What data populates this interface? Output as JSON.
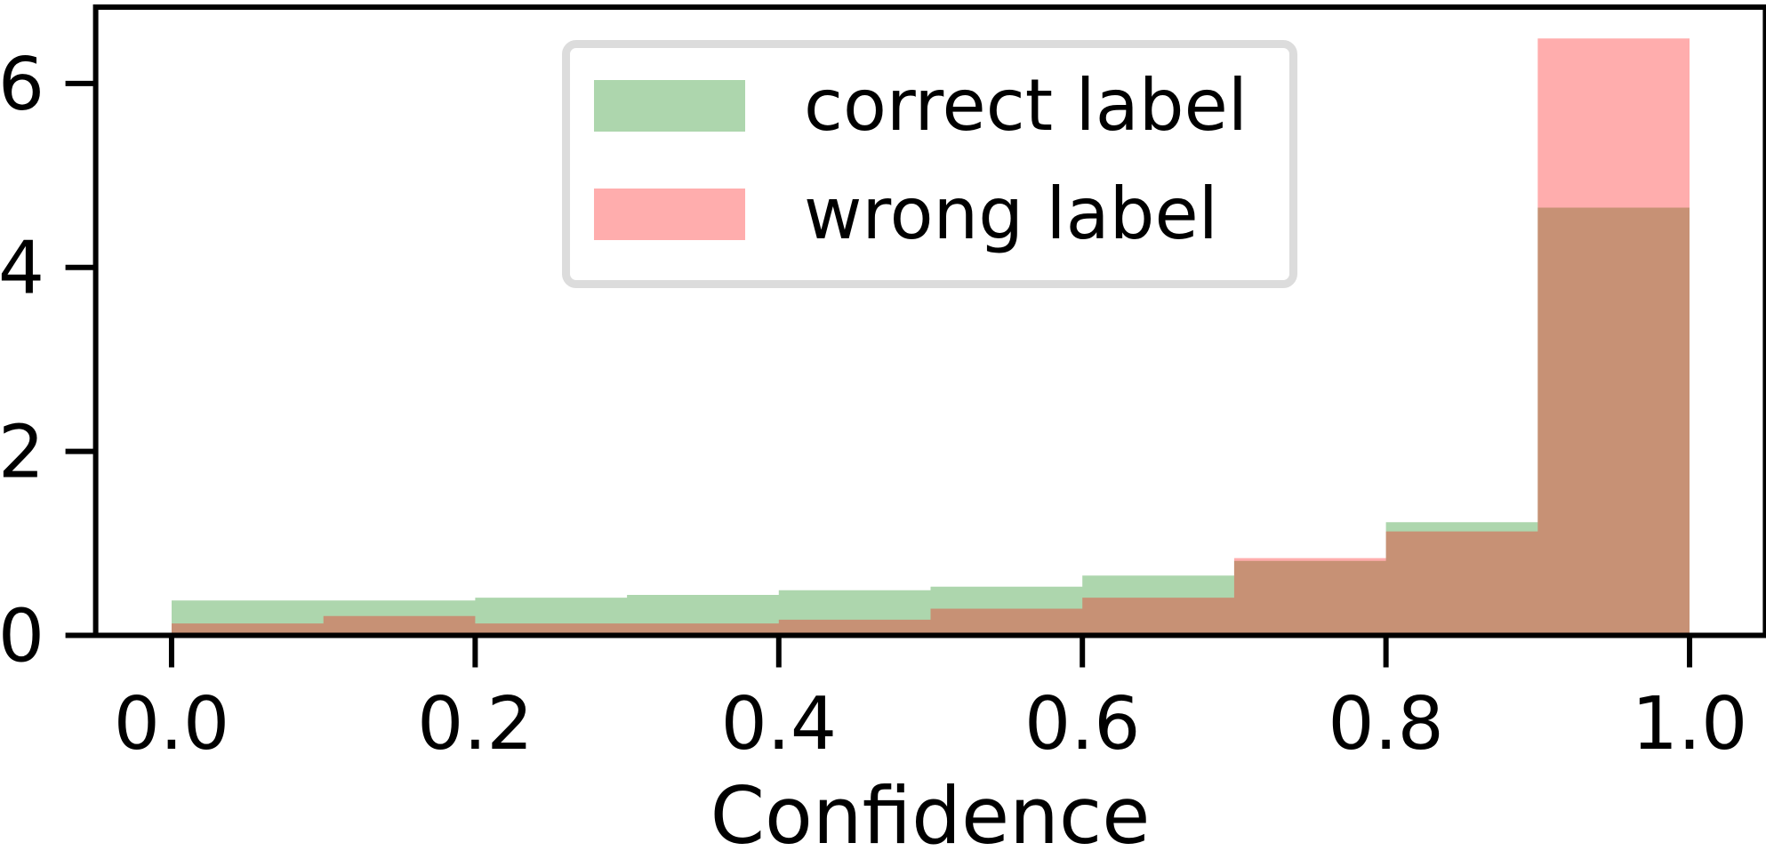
{
  "chart_data": {
    "type": "histogram",
    "stat": "density",
    "title": "",
    "xlabel": "Confidence",
    "ylabel": "",
    "bin_edges": [
      0.0,
      0.1,
      0.2,
      0.3,
      0.4,
      0.5,
      0.6,
      0.7,
      0.8,
      0.9,
      1.0
    ],
    "series": [
      {
        "name": "correct label",
        "base_color": "#008000",
        "fill": "rgba(0,128,0,0.32)",
        "rendered_fill_hex": "#add6ad",
        "values": [
          0.38,
          0.38,
          0.41,
          0.44,
          0.49,
          0.53,
          0.65,
          0.81,
          1.23,
          4.65
        ]
      },
      {
        "name": "wrong label",
        "base_color": "#ff0000",
        "fill": "rgba(255,0,0,0.32)",
        "rendered_fill_hex": "#ffadad",
        "values": [
          0.13,
          0.21,
          0.13,
          0.13,
          0.17,
          0.29,
          0.41,
          0.84,
          1.13,
          6.49
        ]
      }
    ],
    "overlap_rendered_hex": "#c7926f",
    "x_tick_values": [
      0.0,
      0.2,
      0.4,
      0.6,
      0.8,
      1.0
    ],
    "x_tick_labels": [
      "0.0",
      "0.2",
      "0.4",
      "0.6",
      "0.8",
      "1.0"
    ],
    "y_tick_values": [
      0,
      2,
      4,
      6
    ],
    "y_tick_labels": [
      "0",
      "2",
      "4",
      "6"
    ],
    "xlim": [
      -0.05,
      1.05
    ],
    "ylim": [
      0,
      6.83
    ],
    "grid": false,
    "legend": {
      "position": "upper-left",
      "border_color": "#dcdcdc",
      "entries": [
        "correct label",
        "wrong label"
      ]
    },
    "axis_color": "#000000",
    "background": "#ffffff"
  }
}
